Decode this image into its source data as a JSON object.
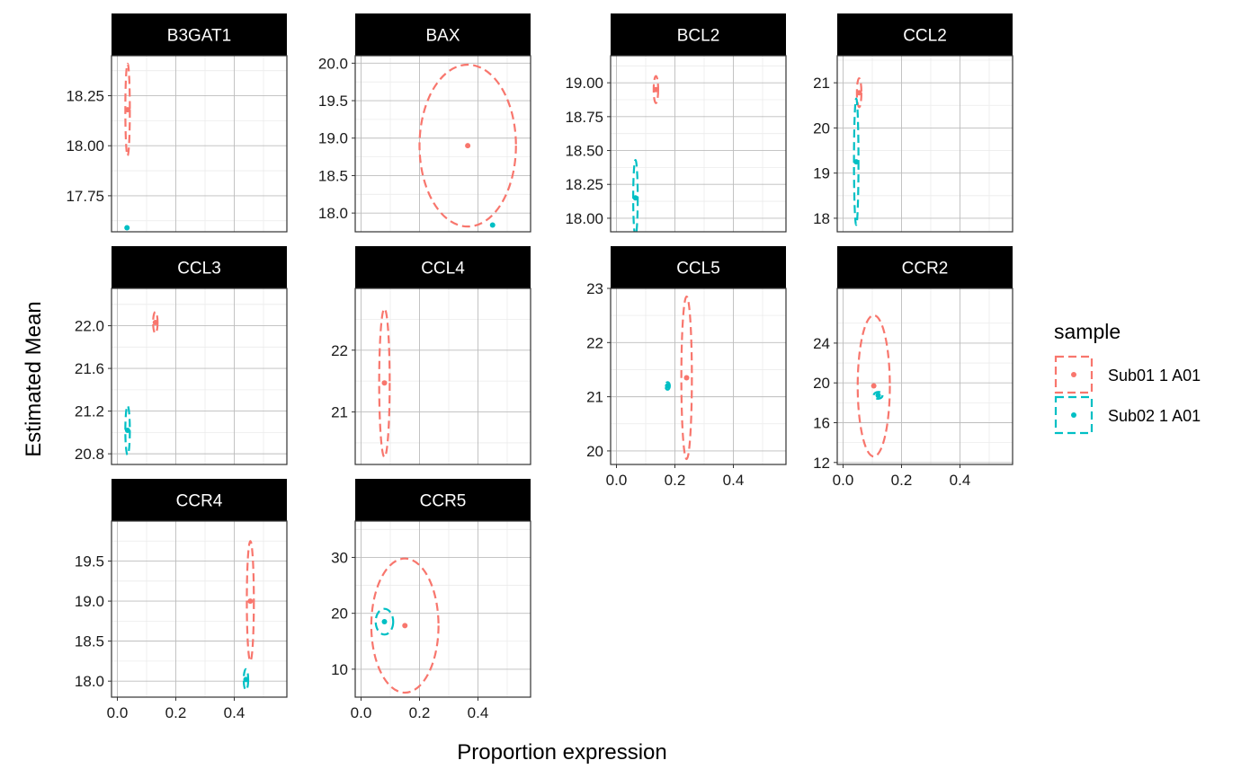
{
  "chart_data": {
    "type": "scatter",
    "xlabel": "Proportion expression",
    "ylabel": "Estimated Mean",
    "xlim": [
      -0.02,
      0.58
    ],
    "x_ticks": [
      "0.0",
      "0.2",
      "0.4"
    ],
    "grid": true,
    "legend": {
      "title": "sample",
      "placement": "right",
      "entries": [
        {
          "label": "Sub01 1 A01",
          "color": "#F8766D"
        },
        {
          "label": "Sub02 1 A01",
          "color": "#00BFC4"
        }
      ]
    },
    "panels": [
      {
        "title": "B3GAT1",
        "ylim": [
          17.57,
          18.45
        ],
        "y_ticks": [
          "17.75",
          "18.00",
          "18.25"
        ],
        "series": [
          {
            "name": "Sub01 1 A01",
            "x": 0.035,
            "y": 18.18,
            "ellipse": {
              "rx": 0.003,
              "ry": 0.23
            }
          },
          {
            "name": "Sub02 1 A01",
            "x": 0.033,
            "y": 17.59,
            "ellipse": null
          }
        ]
      },
      {
        "title": "BAX",
        "ylim": [
          17.75,
          20.1
        ],
        "y_ticks": [
          "18.0",
          "18.5",
          "19.0",
          "19.5",
          "20.0"
        ],
        "series": [
          {
            "name": "Sub01 1 A01",
            "x": 0.365,
            "y": 18.9,
            "ellipse": {
              "rx": 0.165,
              "ry": 1.08
            }
          },
          {
            "name": "Sub02 1 A01",
            "x": 0.45,
            "y": 17.84,
            "ellipse": null
          }
        ]
      },
      {
        "title": "BCL2",
        "ylim": [
          17.9,
          19.2
        ],
        "y_ticks": [
          "18.00",
          "18.25",
          "18.50",
          "18.75",
          "19.00"
        ],
        "series": [
          {
            "name": "Sub01 1 A01",
            "x": 0.135,
            "y": 18.95,
            "ellipse": {
              "rx": 0.003,
              "ry": 0.1
            }
          },
          {
            "name": "Sub02 1 A01",
            "x": 0.065,
            "y": 18.15,
            "ellipse": {
              "rx": 0.002,
              "ry": 0.28
            }
          }
        ]
      },
      {
        "title": "CCL2",
        "ylim": [
          17.7,
          21.6
        ],
        "y_ticks": [
          "18",
          "19",
          "20",
          "21"
        ],
        "series": [
          {
            "name": "Sub01 1 A01",
            "x": 0.055,
            "y": 20.78,
            "ellipse": {
              "rx": 0.004,
              "ry": 0.32
            }
          },
          {
            "name": "Sub02 1 A01",
            "x": 0.045,
            "y": 19.25,
            "ellipse": {
              "rx": 0.004,
              "ry": 1.4
            }
          }
        ]
      },
      {
        "title": "CCL3",
        "ylim": [
          20.7,
          22.35
        ],
        "y_ticks": [
          "20.8",
          "21.2",
          "21.6",
          "22.0"
        ],
        "series": [
          {
            "name": "Sub01 1 A01",
            "x": 0.13,
            "y": 22.03,
            "ellipse": {
              "rx": 0.004,
              "ry": 0.1
            }
          },
          {
            "name": "Sub02 1 A01",
            "x": 0.035,
            "y": 21.02,
            "ellipse": {
              "rx": 0.003,
              "ry": 0.23
            }
          }
        ]
      },
      {
        "title": "CCL4",
        "ylim": [
          20.15,
          23.0
        ],
        "y_ticks": [
          "21",
          "22"
        ],
        "series": [
          {
            "name": "Sub01 1 A01",
            "x": 0.08,
            "y": 21.47,
            "ellipse": {
              "rx": 0.018,
              "ry": 1.2
            }
          },
          {
            "name": "Sub02 1 A01",
            "x": null,
            "y": null,
            "ellipse": null
          }
        ]
      },
      {
        "title": "CCL5",
        "ylim": [
          19.75,
          23.0
        ],
        "y_ticks": [
          "20",
          "21",
          "22",
          "23"
        ],
        "series": [
          {
            "name": "Sub01 1 A01",
            "x": 0.24,
            "y": 21.35,
            "ellipse": {
              "rx": 0.018,
              "ry": 1.5
            }
          },
          {
            "name": "Sub02 1 A01",
            "x": 0.175,
            "y": 21.2,
            "ellipse": {
              "rx": 0.002,
              "ry": 0.07
            }
          }
        ]
      },
      {
        "title": "CCR2",
        "ylim": [
          11.8,
          29.5
        ],
        "y_ticks": [
          "12",
          "16",
          "20",
          "24"
        ],
        "series": [
          {
            "name": "Sub01 1 A01",
            "x": 0.105,
            "y": 19.7,
            "ellipse": {
              "rx": 0.055,
              "ry": 7.1
            }
          },
          {
            "name": "Sub02 1 A01",
            "x": 0.12,
            "y": 18.75,
            "ellipse": {
              "rx": 0.015,
              "ry": 0.35
            }
          }
        ]
      },
      {
        "title": "CCR4",
        "ylim": [
          17.8,
          20.0
        ],
        "y_ticks": [
          "18.0",
          "18.5",
          "19.0",
          "19.5"
        ],
        "series": [
          {
            "name": "Sub01 1 A01",
            "x": 0.455,
            "y": 19.0,
            "ellipse": {
              "rx": 0.012,
              "ry": 0.75
            }
          },
          {
            "name": "Sub02 1 A01",
            "x": 0.44,
            "y": 18.02,
            "ellipse": {
              "rx": 0.007,
              "ry": 0.13
            }
          }
        ]
      },
      {
        "title": "CCR5",
        "ylim": [
          5.0,
          36.5
        ],
        "y_ticks": [
          "10",
          "20",
          "30"
        ],
        "series": [
          {
            "name": "Sub01 1 A01",
            "x": 0.15,
            "y": 17.8,
            "ellipse": {
              "rx": 0.115,
              "ry": 12.0
            }
          },
          {
            "name": "Sub02 1 A01",
            "x": 0.08,
            "y": 18.5,
            "ellipse": {
              "rx": 0.03,
              "ry": 2.3
            }
          }
        ]
      }
    ]
  }
}
